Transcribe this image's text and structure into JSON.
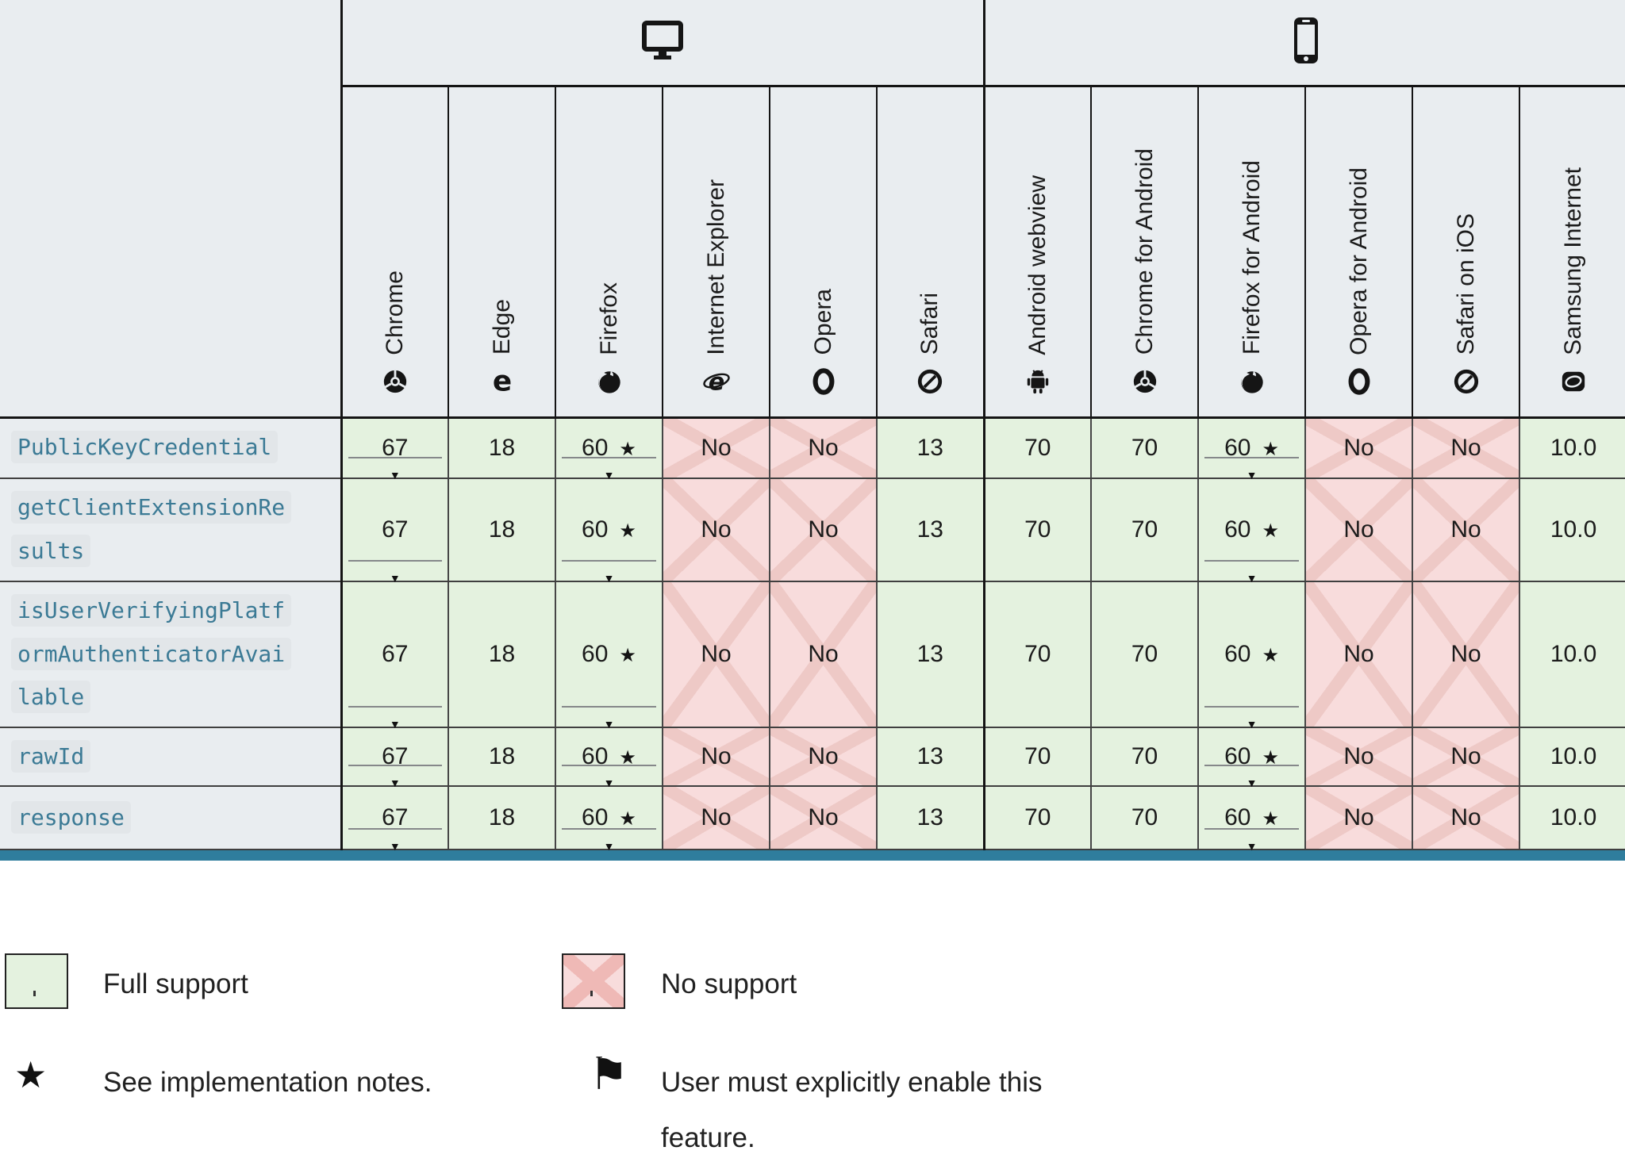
{
  "colors": {
    "table_bg": "#e9edf0",
    "support_full_bg": "#e4f2df",
    "support_none_bg": "#f8dcdc",
    "support_none_stripe": "#eec9c6",
    "feature_text": "#3b7a95",
    "bottom_scrollbar": "#2f7d9d"
  },
  "symbols": {
    "star": "★",
    "history_arrow": "▼",
    "flag": "⚑",
    "legend_star": "★"
  },
  "table": {
    "groups": [
      {
        "name": "desktop",
        "icon": "desktop-icon",
        "span": 6
      },
      {
        "name": "mobile",
        "icon": "mobile-icon",
        "span": 6
      }
    ],
    "browsers": [
      {
        "label": "Chrome",
        "icon": "chrome-icon"
      },
      {
        "label": "Edge",
        "icon": "edge-icon"
      },
      {
        "label": "Firefox",
        "icon": "firefox-icon"
      },
      {
        "label": "Internet Explorer",
        "icon": "internet-explorer-icon"
      },
      {
        "label": "Opera",
        "icon": "opera-icon"
      },
      {
        "label": "Safari",
        "icon": "safari-icon"
      },
      {
        "label": "Android webview",
        "icon": "android-icon"
      },
      {
        "label": "Chrome for Android",
        "icon": "chrome-icon"
      },
      {
        "label": "Firefox for Android",
        "icon": "firefox-icon"
      },
      {
        "label": "Opera for Android",
        "icon": "opera-icon"
      },
      {
        "label": "Safari on iOS",
        "icon": "safari-icon"
      },
      {
        "label": "Samsung Internet",
        "icon": "samsung-internet-icon"
      }
    ],
    "rows": [
      {
        "feature": "PublicKeyCredential",
        "cells": [
          {
            "text": "67",
            "support": "full",
            "star": false,
            "history": true
          },
          {
            "text": "18",
            "support": "full",
            "star": false,
            "history": false
          },
          {
            "text": "60",
            "support": "full",
            "star": true,
            "history": true
          },
          {
            "text": "No",
            "support": "none",
            "star": false,
            "history": false
          },
          {
            "text": "No",
            "support": "none",
            "star": false,
            "history": false
          },
          {
            "text": "13",
            "support": "full",
            "star": false,
            "history": false
          },
          {
            "text": "70",
            "support": "full",
            "star": false,
            "history": false
          },
          {
            "text": "70",
            "support": "full",
            "star": false,
            "history": false
          },
          {
            "text": "60",
            "support": "full",
            "star": true,
            "history": true
          },
          {
            "text": "No",
            "support": "none",
            "star": false,
            "history": false
          },
          {
            "text": "No",
            "support": "none",
            "star": false,
            "history": false
          },
          {
            "text": "10.0",
            "support": "full",
            "star": false,
            "history": false
          }
        ]
      },
      {
        "feature": "getClientExtensionResults",
        "cells": [
          {
            "text": "67",
            "support": "full",
            "star": false,
            "history": true
          },
          {
            "text": "18",
            "support": "full",
            "star": false,
            "history": false
          },
          {
            "text": "60",
            "support": "full",
            "star": true,
            "history": true
          },
          {
            "text": "No",
            "support": "none",
            "star": false,
            "history": false
          },
          {
            "text": "No",
            "support": "none",
            "star": false,
            "history": false
          },
          {
            "text": "13",
            "support": "full",
            "star": false,
            "history": false
          },
          {
            "text": "70",
            "support": "full",
            "star": false,
            "history": false
          },
          {
            "text": "70",
            "support": "full",
            "star": false,
            "history": false
          },
          {
            "text": "60",
            "support": "full",
            "star": true,
            "history": true
          },
          {
            "text": "No",
            "support": "none",
            "star": false,
            "history": false
          },
          {
            "text": "No",
            "support": "none",
            "star": false,
            "history": false
          },
          {
            "text": "10.0",
            "support": "full",
            "star": false,
            "history": false
          }
        ]
      },
      {
        "feature": "isUserVerifyingPlatformAuthenticatorAvailable",
        "cells": [
          {
            "text": "67",
            "support": "full",
            "star": false,
            "history": true
          },
          {
            "text": "18",
            "support": "full",
            "star": false,
            "history": false
          },
          {
            "text": "60",
            "support": "full",
            "star": true,
            "history": true
          },
          {
            "text": "No",
            "support": "none",
            "star": false,
            "history": false
          },
          {
            "text": "No",
            "support": "none",
            "star": false,
            "history": false
          },
          {
            "text": "13",
            "support": "full",
            "star": false,
            "history": false
          },
          {
            "text": "70",
            "support": "full",
            "star": false,
            "history": false
          },
          {
            "text": "70",
            "support": "full",
            "star": false,
            "history": false
          },
          {
            "text": "60",
            "support": "full",
            "star": true,
            "history": true
          },
          {
            "text": "No",
            "support": "none",
            "star": false,
            "history": false
          },
          {
            "text": "No",
            "support": "none",
            "star": false,
            "history": false
          },
          {
            "text": "10.0",
            "support": "full",
            "star": false,
            "history": false
          }
        ]
      },
      {
        "feature": "rawId",
        "cells": [
          {
            "text": "67",
            "support": "full",
            "star": false,
            "history": true
          },
          {
            "text": "18",
            "support": "full",
            "star": false,
            "history": false
          },
          {
            "text": "60",
            "support": "full",
            "star": true,
            "history": true
          },
          {
            "text": "No",
            "support": "none",
            "star": false,
            "history": false
          },
          {
            "text": "No",
            "support": "none",
            "star": false,
            "history": false
          },
          {
            "text": "13",
            "support": "full",
            "star": false,
            "history": false
          },
          {
            "text": "70",
            "support": "full",
            "star": false,
            "history": false
          },
          {
            "text": "70",
            "support": "full",
            "star": false,
            "history": false
          },
          {
            "text": "60",
            "support": "full",
            "star": true,
            "history": true
          },
          {
            "text": "No",
            "support": "none",
            "star": false,
            "history": false
          },
          {
            "text": "No",
            "support": "none",
            "star": false,
            "history": false
          },
          {
            "text": "10.0",
            "support": "full",
            "star": false,
            "history": false
          }
        ]
      },
      {
        "feature": "response",
        "cells": [
          {
            "text": "67",
            "support": "full",
            "star": false,
            "history": true
          },
          {
            "text": "18",
            "support": "full",
            "star": false,
            "history": false
          },
          {
            "text": "60",
            "support": "full",
            "star": true,
            "history": true
          },
          {
            "text": "No",
            "support": "none",
            "star": false,
            "history": false
          },
          {
            "text": "No",
            "support": "none",
            "star": false,
            "history": false
          },
          {
            "text": "13",
            "support": "full",
            "star": false,
            "history": false
          },
          {
            "text": "70",
            "support": "full",
            "star": false,
            "history": false
          },
          {
            "text": "70",
            "support": "full",
            "star": false,
            "history": false
          },
          {
            "text": "60",
            "support": "full",
            "star": true,
            "history": true
          },
          {
            "text": "No",
            "support": "none",
            "star": false,
            "history": false
          },
          {
            "text": "No",
            "support": "none",
            "star": false,
            "history": false
          },
          {
            "text": "10.0",
            "support": "full",
            "star": false,
            "history": false
          }
        ]
      }
    ]
  },
  "legend": {
    "items": [
      {
        "swatch": "full-support-swatch",
        "label": "Full support"
      },
      {
        "swatch": "no-support-swatch",
        "label": "No support"
      },
      {
        "swatch": "star-icon",
        "label": "See implementation notes."
      },
      {
        "swatch": "flag-icon",
        "label": "User must explicitly enable this feature."
      }
    ]
  }
}
